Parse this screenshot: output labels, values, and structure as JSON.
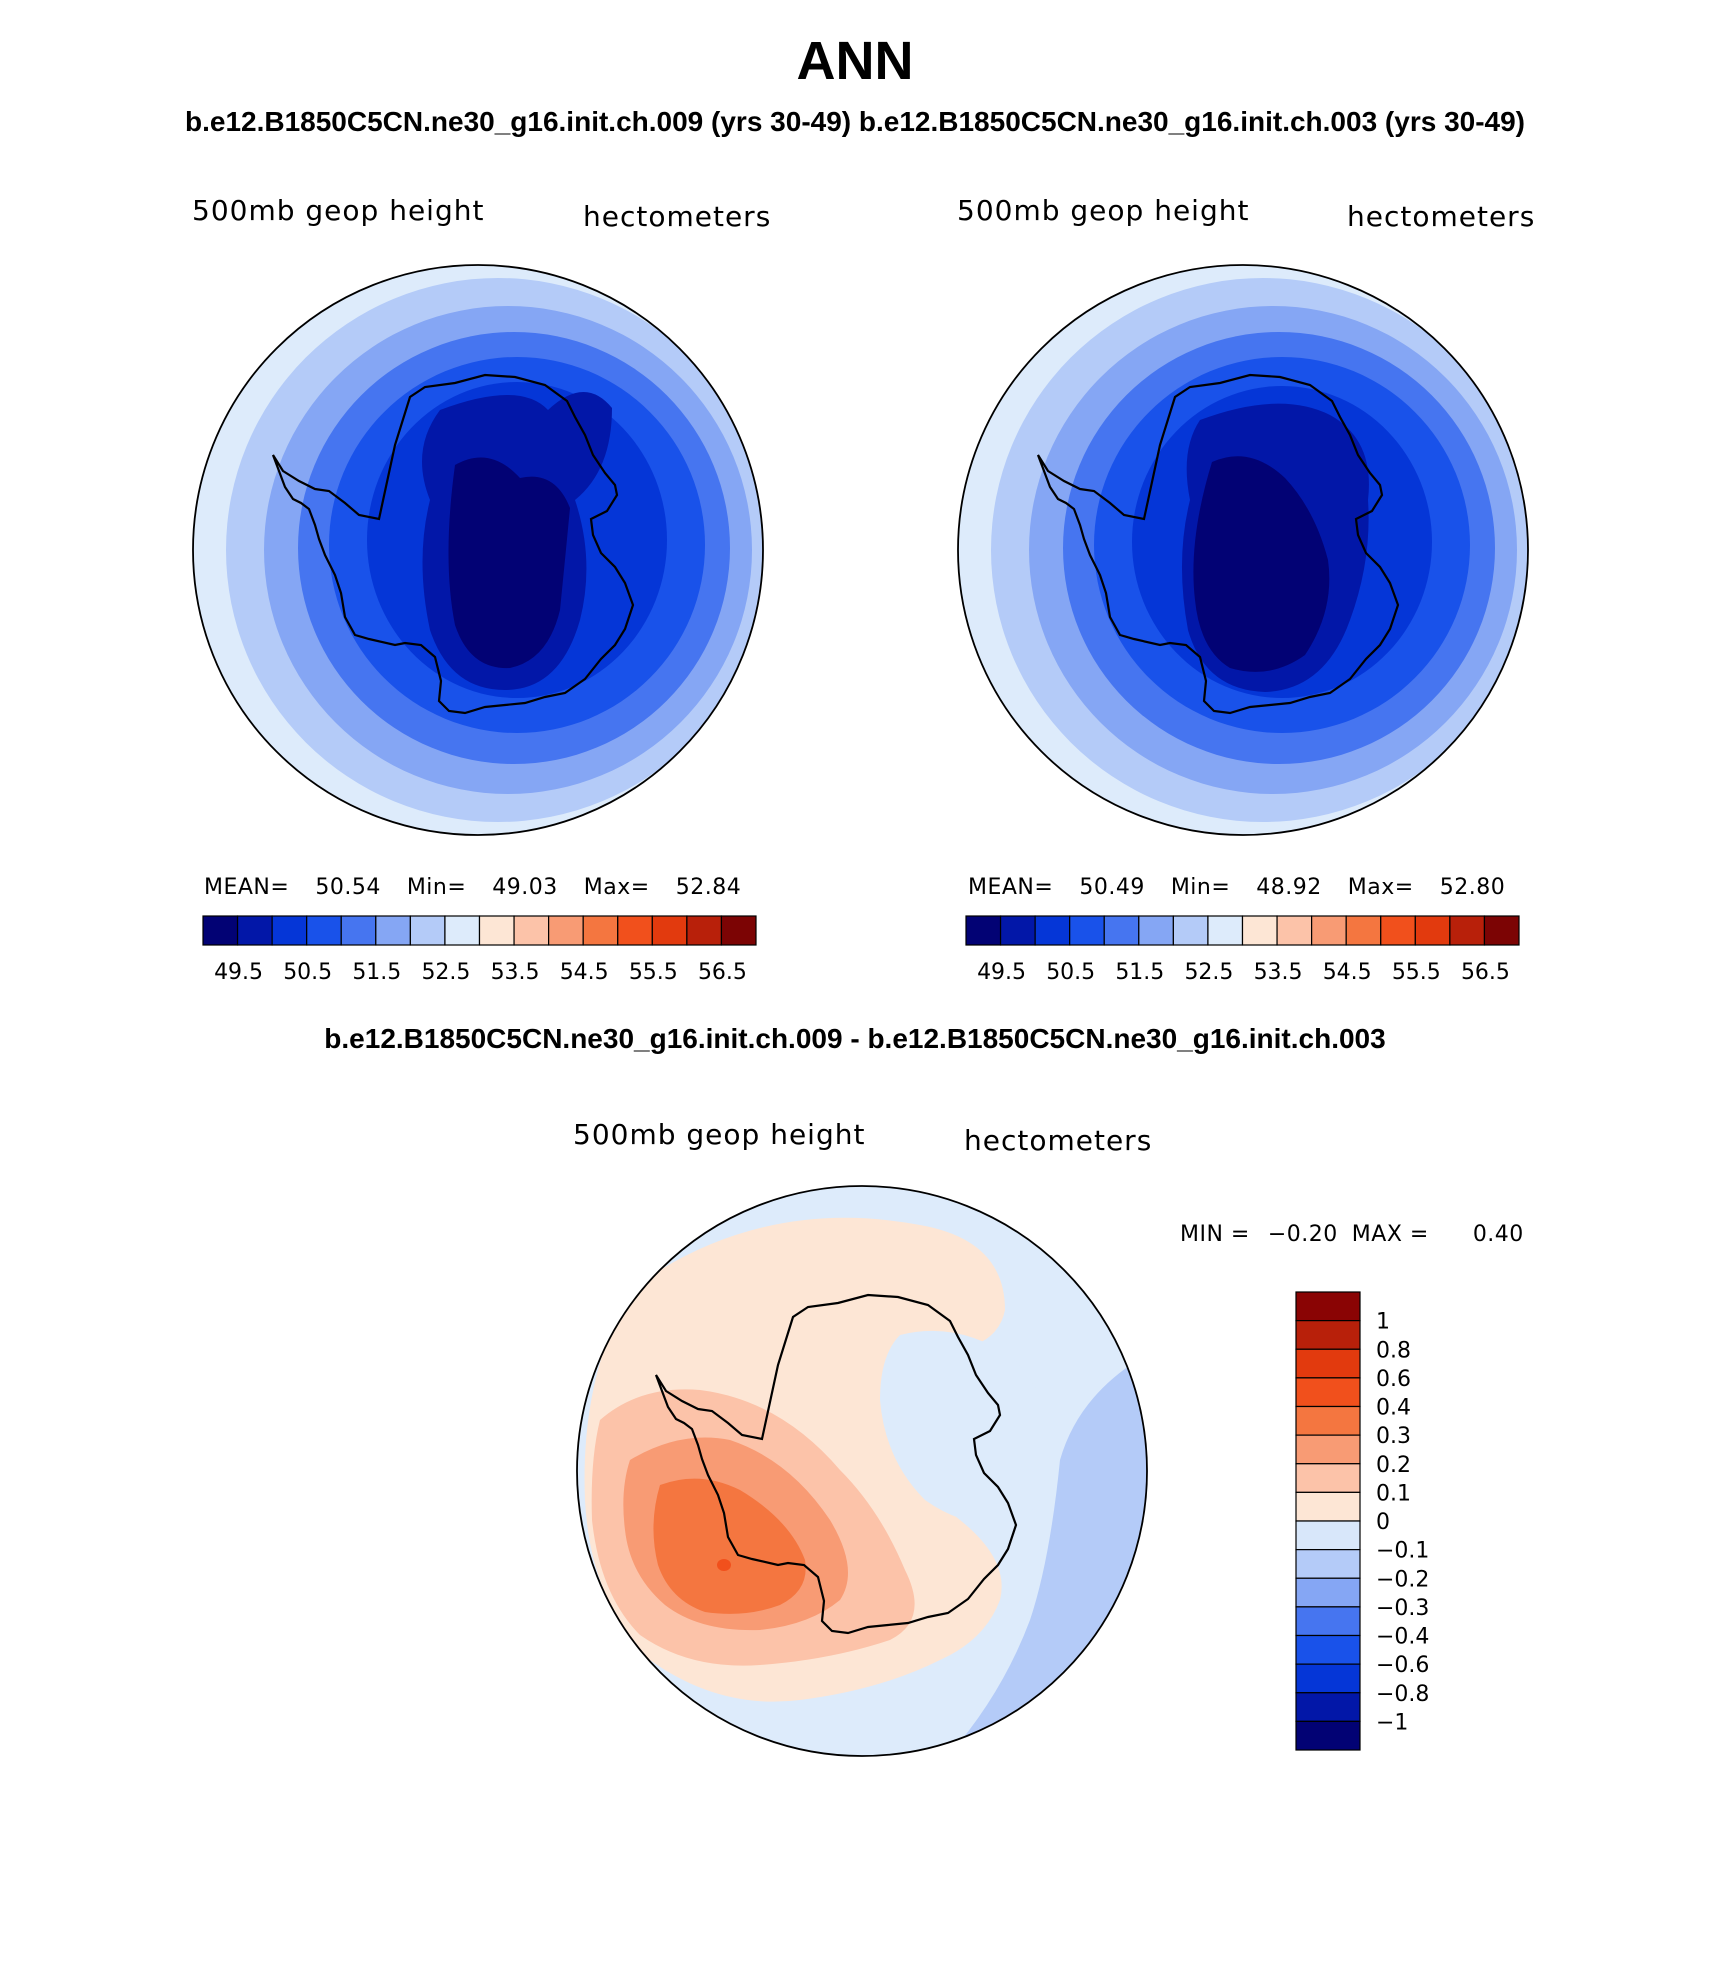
{
  "title": "ANN",
  "case_line": "b.e12.B1850C5CN.ne30_g16.init.ch.009 (yrs 30-49)  b.e12.B1850C5CN.ne30_g16.init.ch.003 (yrs 30-49)",
  "diff_line": "b.e12.B1850C5CN.ne30_g16.init.ch.009 - b.e12.B1850C5CN.ne30_g16.init.ch.003",
  "panels": [
    {
      "variable": "500mb geop height",
      "units": "hectometers",
      "stats": {
        "mean_label": "MEAN=",
        "mean": "50.54",
        "min_label": "Min=",
        "min": "49.03",
        "max_label": "Max=",
        "max": "52.84"
      }
    },
    {
      "variable": "500mb geop height",
      "units": "hectometers",
      "stats": {
        "mean_label": "MEAN=",
        "mean": "50.49",
        "min_label": "Min=",
        "min": "48.92",
        "max_label": "Max=",
        "max": "52.80"
      }
    },
    {
      "variable": "500mb geop height",
      "units": "hectometers",
      "stats": {
        "min_label": "MIN =",
        "min": "−0.20",
        "max_label": "MAX =",
        "max": "0.40"
      }
    }
  ],
  "chart_data": [
    {
      "type": "contour-map",
      "projection": "south polar stereographic",
      "colorbar_orientation": "horizontal",
      "tick_labels": [
        "49.5",
        "50.5",
        "51.5",
        "52.5",
        "53.5",
        "54.5",
        "55.5",
        "56.5"
      ],
      "levels": [
        49.5,
        50,
        50.5,
        51,
        51.5,
        52,
        52.5,
        53,
        53.5,
        54,
        54.5,
        55,
        55.5,
        56,
        56.5
      ],
      "colors": [
        "#020274",
        "#0217a8",
        "#0536d7",
        "#1952ea",
        "#4675f0",
        "#85a6f4",
        "#b4cbf8",
        "#ddebfb",
        "#fde6d5",
        "#fcc3a9",
        "#f89b74",
        "#f47640",
        "#f1501c",
        "#e23a0e",
        "#b8200a",
        "#7c0404"
      ]
    },
    {
      "type": "contour-map",
      "projection": "south polar stereographic",
      "colorbar_orientation": "horizontal",
      "tick_labels": [
        "49.5",
        "50.5",
        "51.5",
        "52.5",
        "53.5",
        "54.5",
        "55.5",
        "56.5"
      ],
      "levels": [
        49.5,
        50,
        50.5,
        51,
        51.5,
        52,
        52.5,
        53,
        53.5,
        54,
        54.5,
        55,
        55.5,
        56,
        56.5
      ],
      "colors": [
        "#020274",
        "#0217a8",
        "#0536d7",
        "#1952ea",
        "#4675f0",
        "#85a6f4",
        "#b4cbf8",
        "#ddebfb",
        "#fde6d5",
        "#fcc3a9",
        "#f89b74",
        "#f47640",
        "#f1501c",
        "#e23a0e",
        "#b8200a",
        "#7c0404"
      ]
    },
    {
      "type": "contour-map",
      "projection": "south polar stereographic",
      "colorbar_orientation": "vertical",
      "tick_labels": [
        "1",
        "0.8",
        "0.6",
        "0.4",
        "0.3",
        "0.2",
        "0.1",
        "0",
        "−0.1",
        "−0.2",
        "−0.3",
        "−0.4",
        "−0.6",
        "−0.8",
        "−1"
      ],
      "levels": [
        1,
        0.8,
        0.6,
        0.4,
        0.3,
        0.2,
        0.1,
        0,
        -0.1,
        -0.2,
        -0.3,
        -0.4,
        -0.6,
        -0.8,
        -1
      ],
      "colors": [
        "#8a0404",
        "#b8200a",
        "#e23a0e",
        "#f1501c",
        "#f47640",
        "#f89b74",
        "#fcc3a9",
        "#fde6d5",
        "#d8e7fa",
        "#b4cbf8",
        "#85a6f4",
        "#4675f0",
        "#1952ea",
        "#0536d7",
        "#0217a8",
        "#020274"
      ]
    }
  ]
}
